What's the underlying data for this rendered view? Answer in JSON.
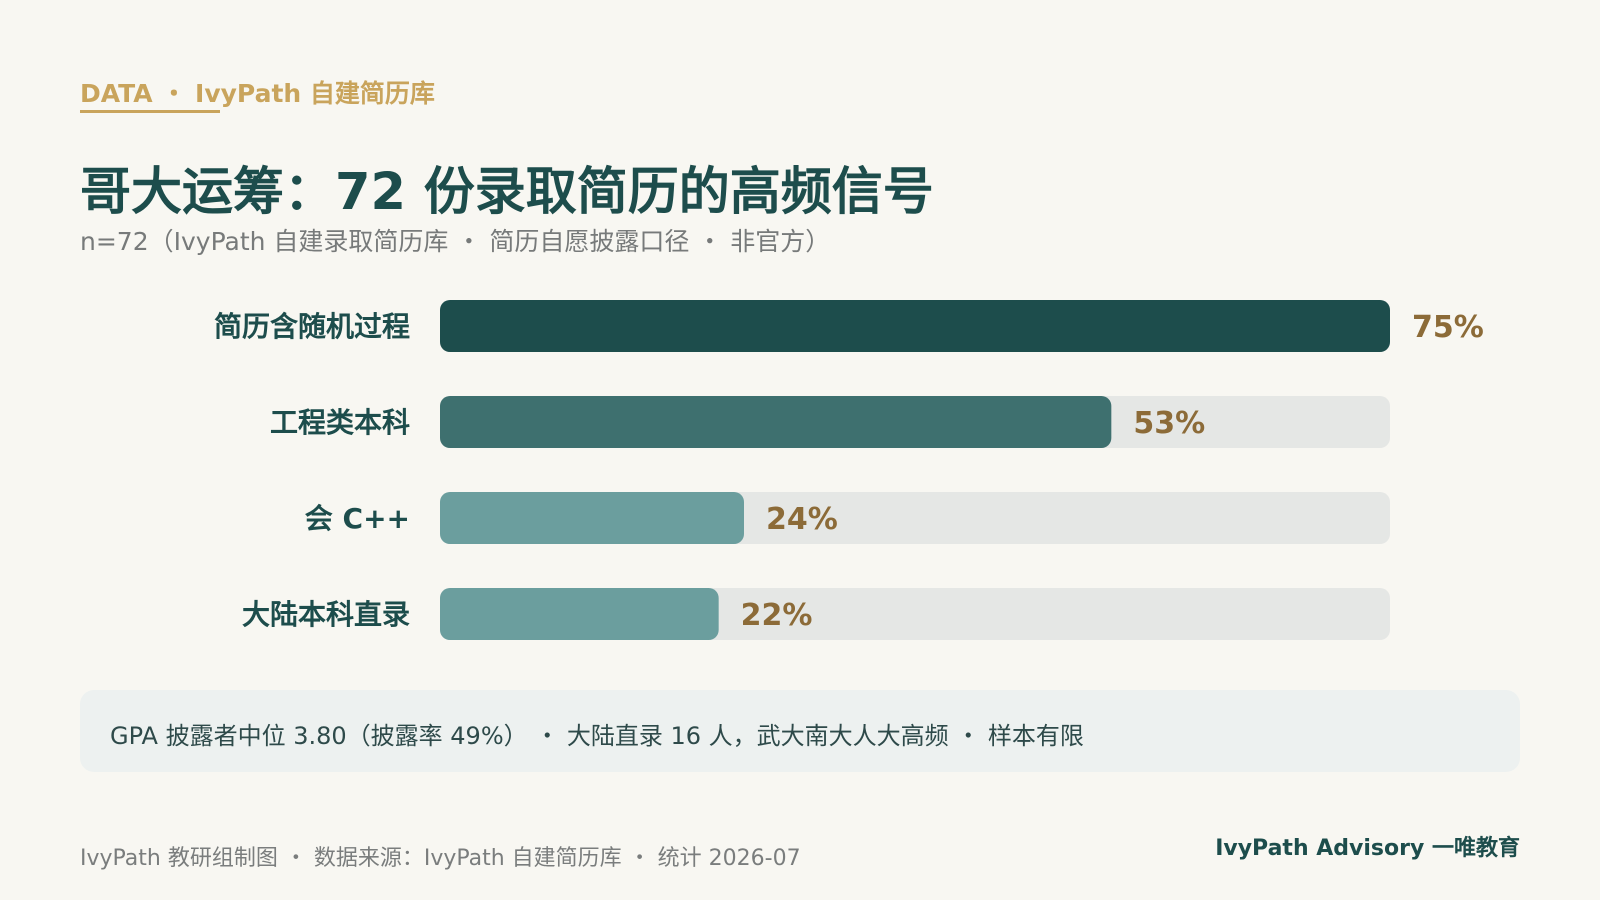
{
  "header": {
    "eyebrow": "DATA ・ IvyPath 自建简历库",
    "title": "哥大运筹：72 份录取简历的高频信号",
    "subtitle": "n=72（IvyPath 自建录取简历库 ・ 简历自愿披露口径 ・ 非官方）"
  },
  "chart_data": {
    "type": "bar",
    "orientation": "horizontal",
    "categories": [
      "简历含随机过程",
      "工程类本科",
      "会 C++",
      "大陆本科直录"
    ],
    "values": [
      75,
      53,
      24,
      22
    ],
    "value_labels": [
      "75%",
      "53%",
      "24%",
      "22%"
    ],
    "xlim": [
      0,
      75
    ],
    "colors": [
      "#1d4d4c",
      "#3e706f",
      "#6b9e9e",
      "#6b9e9e"
    ],
    "track_color": "#e5e7e5",
    "title": "",
    "xlabel": "",
    "ylabel": ""
  },
  "note": {
    "text": "GPA 披露者中位 3.80（披露率 49%） ・ 大陆直录 16 人，武大南大人大高频 ・ 样本有限"
  },
  "footer": {
    "left": "IvyPath 教研组制图 ・ 数据来源：IvyPath 自建简历库 ・ 统计 2026-07",
    "right": "IvyPath Advisory 一唯教育"
  }
}
